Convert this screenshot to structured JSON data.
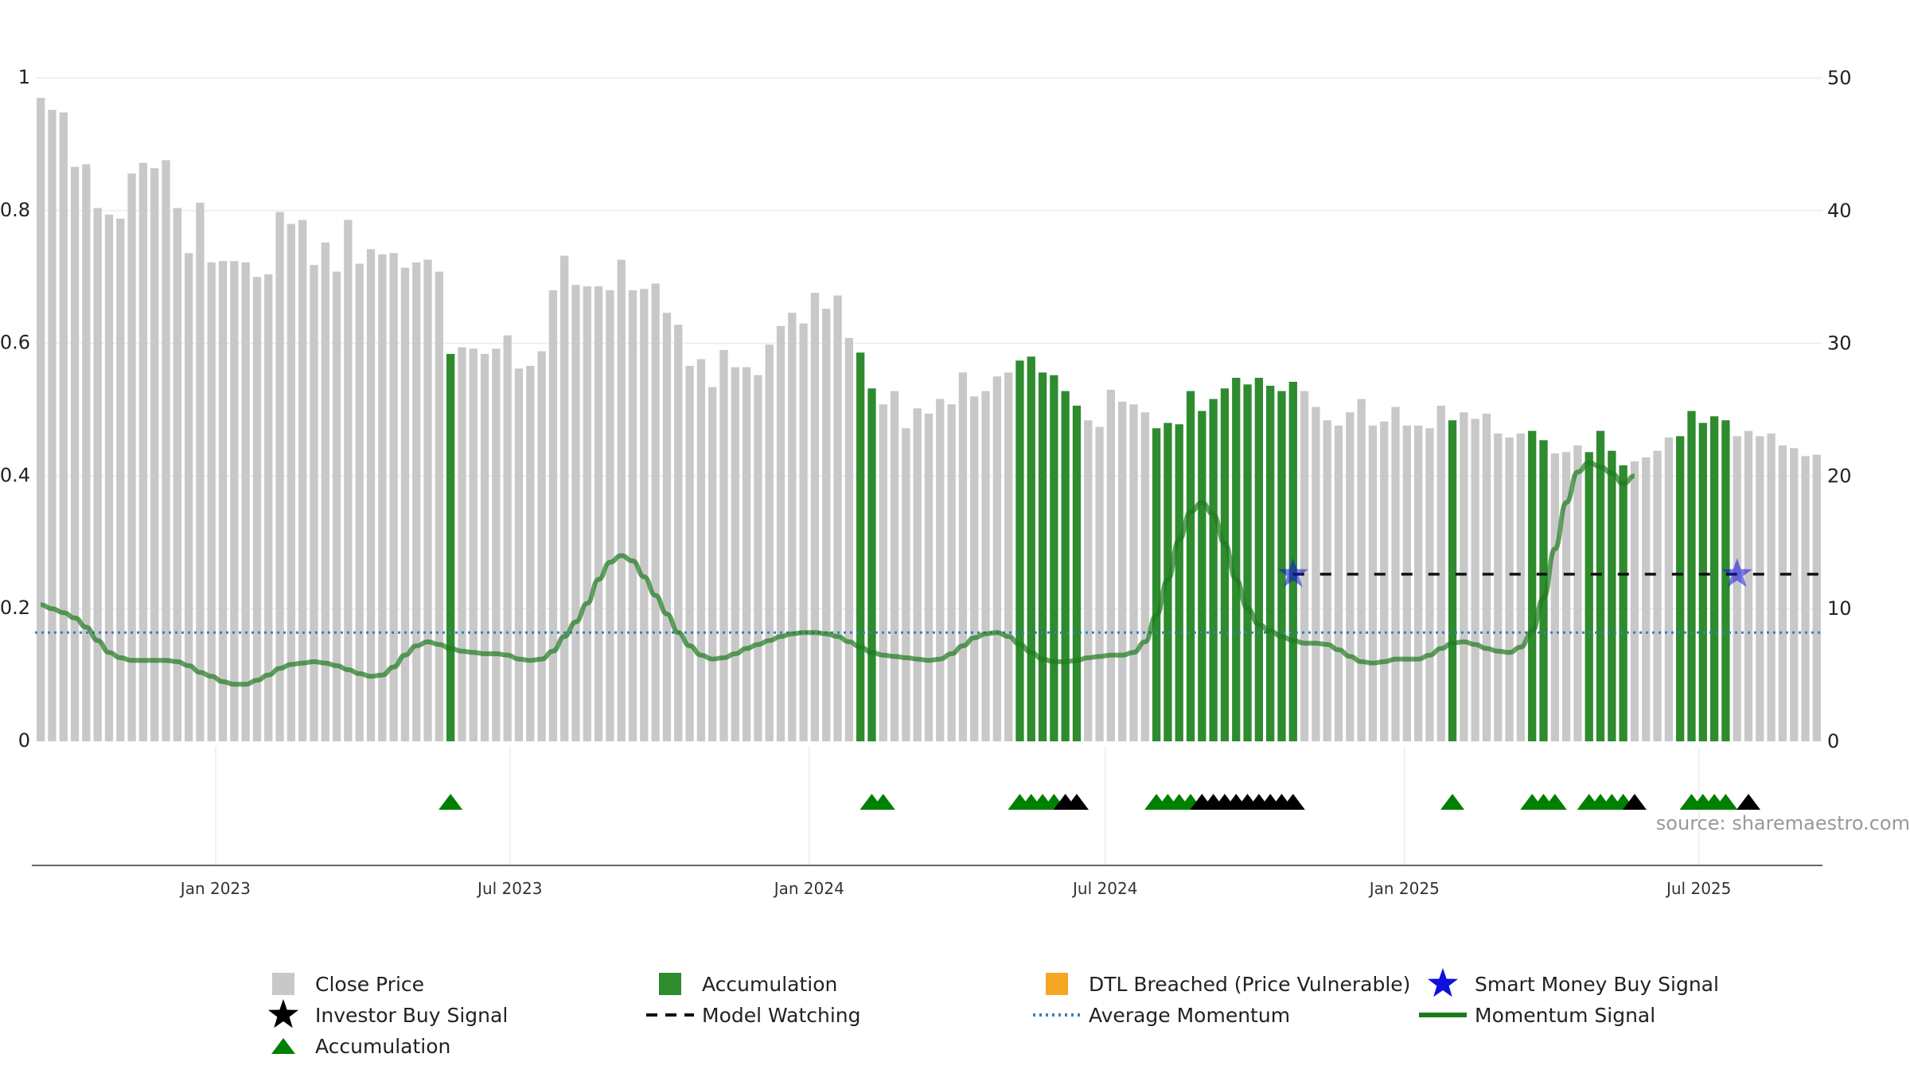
{
  "chart_data": {
    "type": "bar",
    "title": "",
    "xlabel": "",
    "ylabel": "",
    "source_text": "source: sharemaestro.com",
    "left_axis": {
      "ylim": [
        0,
        1
      ],
      "ticks": [
        0,
        0.2,
        0.4,
        0.6,
        0.8,
        1
      ],
      "tick_labels": [
        "0",
        "0.2",
        "0.4",
        "0.6",
        "0.8",
        "1"
      ]
    },
    "right_axis": {
      "ylim": [
        0,
        50
      ],
      "ticks": [
        0,
        10,
        20,
        30,
        40,
        50
      ],
      "tick_labels": [
        "0",
        "10",
        "20",
        "30",
        "40",
        "50"
      ]
    },
    "x_axis": {
      "start": "2022-09-12",
      "end": "2025-09-15",
      "ticks": [
        {
          "date": "2023-01-01",
          "label": "Jan 2023"
        },
        {
          "date": "2023-07-01",
          "label": "Jul 2023"
        },
        {
          "date": "2024-01-01",
          "label": "Jan 2024"
        },
        {
          "date": "2024-07-01",
          "label": "Jul 2024"
        },
        {
          "date": "2025-01-01",
          "label": "Jan 2025"
        },
        {
          "date": "2025-07-01",
          "label": "Jul 2025"
        }
      ]
    },
    "grid": true,
    "legend_position": "bottom",
    "colors": {
      "close_price": "#c8c8c8",
      "accumulation_bar": "#2e8b2e",
      "accumulation_marker": "#008000",
      "investor_buy": "#000000",
      "dtl_breached": "#f5a623",
      "smart_money": "#1010dd",
      "model_watching": "#111111",
      "average_momentum": "#3b7fb8",
      "momentum_signal": "#1e7a1e"
    },
    "legend": [
      {
        "key": "close_price",
        "label": "Close Price",
        "symbol": "square"
      },
      {
        "key": "accumulation_bar",
        "label": "Accumulation",
        "symbol": "square"
      },
      {
        "key": "dtl_breached",
        "label": "DTL Breached (Price Vulnerable)",
        "symbol": "square"
      },
      {
        "key": "smart_money",
        "label": "Smart Money Buy Signal",
        "symbol": "star"
      },
      {
        "key": "investor_buy",
        "label": "Investor Buy Signal",
        "symbol": "star"
      },
      {
        "key": "model_watching",
        "label": "Model Watching",
        "symbol": "dash"
      },
      {
        "key": "average_momentum",
        "label": "Average Momentum",
        "symbol": "dot"
      },
      {
        "key": "momentum_signal",
        "label": "Momentum Signal",
        "symbol": "line"
      },
      {
        "key": "accumulation_marker",
        "label": "Accumulation",
        "symbol": "triangle"
      }
    ],
    "close_price_weekly": [
      48.5,
      47.6,
      47.4,
      43.3,
      43.5,
      40.2,
      39.7,
      39.4,
      42.8,
      43.6,
      43.2,
      43.8,
      40.2,
      36.8,
      40.6,
      36.1,
      36.2,
      36.2,
      36.1,
      35.0,
      35.2,
      39.9,
      39.0,
      39.3,
      35.9,
      37.6,
      35.4,
      39.3,
      36.0,
      37.1,
      36.7,
      36.8,
      35.7,
      36.1,
      36.3,
      35.4,
      29.2,
      29.7,
      29.6,
      29.2,
      29.6,
      30.6,
      28.1,
      28.3,
      29.4,
      34.0,
      36.6,
      34.4,
      34.3,
      34.3,
      34.0,
      36.3,
      34.0,
      34.1,
      34.5,
      32.3,
      31.4,
      28.3,
      28.8,
      26.7,
      29.5,
      28.2,
      28.2,
      27.6,
      29.9,
      31.3,
      32.3,
      31.5,
      33.8,
      32.6,
      33.6,
      30.4,
      29.3,
      26.6,
      25.4,
      26.4,
      23.6,
      25.1,
      24.7,
      25.8,
      25.4,
      27.8,
      26.0,
      26.4,
      27.5,
      27.8,
      28.7,
      29.0,
      27.8,
      27.6,
      26.4,
      25.3,
      24.2,
      23.7,
      26.5,
      25.6,
      25.4,
      24.8,
      23.6,
      24.0,
      23.9,
      26.4,
      24.9,
      25.8,
      26.6,
      27.4,
      26.9,
      27.4,
      26.8,
      26.4,
      27.1,
      26.4,
      25.2,
      24.2,
      23.8,
      24.8,
      25.8,
      23.8,
      24.1,
      25.2,
      23.8,
      23.8,
      23.6,
      25.3,
      24.2,
      24.8,
      24.3,
      24.7,
      23.2,
      22.9,
      23.2,
      23.4,
      22.7,
      21.7,
      21.8,
      22.3,
      21.8,
      23.4,
      21.9,
      20.8,
      21.1,
      21.4,
      21.9,
      22.9,
      23.0,
      24.9,
      24.0,
      24.5,
      24.2,
      23.0,
      23.4,
      23.0,
      23.2,
      22.3,
      22.1,
      21.5,
      21.6
    ],
    "accumulation_bar_weeks": [
      36,
      72,
      73,
      86,
      87,
      88,
      89,
      90,
      91,
      98,
      99,
      100,
      101,
      102,
      103,
      104,
      105,
      106,
      107,
      108,
      109,
      110,
      124,
      131,
      132,
      136,
      137,
      138,
      139,
      144,
      145,
      146,
      147,
      148
    ],
    "momentum_signal": [
      10.3,
      10.0,
      9.7,
      9.3,
      8.6,
      7.6,
      6.7,
      6.3,
      6.1,
      6.1,
      6.1,
      6.1,
      6.0,
      5.7,
      5.2,
      4.9,
      4.5,
      4.3,
      4.3,
      4.6,
      5.0,
      5.5,
      5.8,
      5.9,
      6.0,
      5.9,
      5.7,
      5.4,
      5.1,
      4.9,
      5.0,
      5.6,
      6.5,
      7.2,
      7.5,
      7.3,
      7.0,
      6.8,
      6.7,
      6.6,
      6.6,
      6.5,
      6.2,
      6.1,
      6.2,
      6.8,
      7.9,
      9.0,
      10.4,
      12.2,
      13.5,
      14.0,
      13.6,
      12.4,
      11.0,
      9.6,
      8.2,
      7.2,
      6.5,
      6.2,
      6.3,
      6.6,
      7.0,
      7.3,
      7.6,
      7.9,
      8.1,
      8.2,
      8.2,
      8.1,
      7.9,
      7.5,
      7.1,
      6.7,
      6.5,
      6.4,
      6.3,
      6.2,
      6.1,
      6.2,
      6.6,
      7.2,
      7.8,
      8.1,
      8.2,
      7.9,
      7.3,
      6.7,
      6.2,
      6.0,
      6.0,
      6.1,
      6.3,
      6.4,
      6.5,
      6.5,
      6.7,
      7.5,
      9.5,
      12.2,
      15.2,
      17.3,
      18.0,
      17.1,
      14.9,
      12.2,
      10.0,
      8.8,
      8.3,
      7.9,
      7.6,
      7.4,
      7.4,
      7.3,
      6.9,
      6.4,
      6.0,
      5.9,
      6.0,
      6.2,
      6.2,
      6.2,
      6.5,
      7.0,
      7.4,
      7.5,
      7.3,
      7.0,
      6.8,
      6.7,
      7.1,
      8.3,
      10.8,
      14.5,
      18.0,
      20.3,
      21.0,
      20.7,
      20.2,
      19.4,
      20.0
    ],
    "average_momentum": 8.2,
    "model_watching_level": 12.6,
    "model_watching_from_week": 110,
    "smart_money_buy_weeks": [
      110,
      149
    ],
    "accumulation_triangle_weeks": [
      36,
      73,
      74,
      86,
      87,
      88,
      89,
      98,
      99,
      100,
      101,
      124,
      131,
      132,
      133,
      136,
      137,
      138,
      139,
      145,
      146,
      147,
      148
    ],
    "investor_buy_triangle_weeks": [
      90,
      91,
      102,
      103,
      104,
      105,
      106,
      107,
      108,
      109,
      110,
      140,
      150
    ]
  }
}
